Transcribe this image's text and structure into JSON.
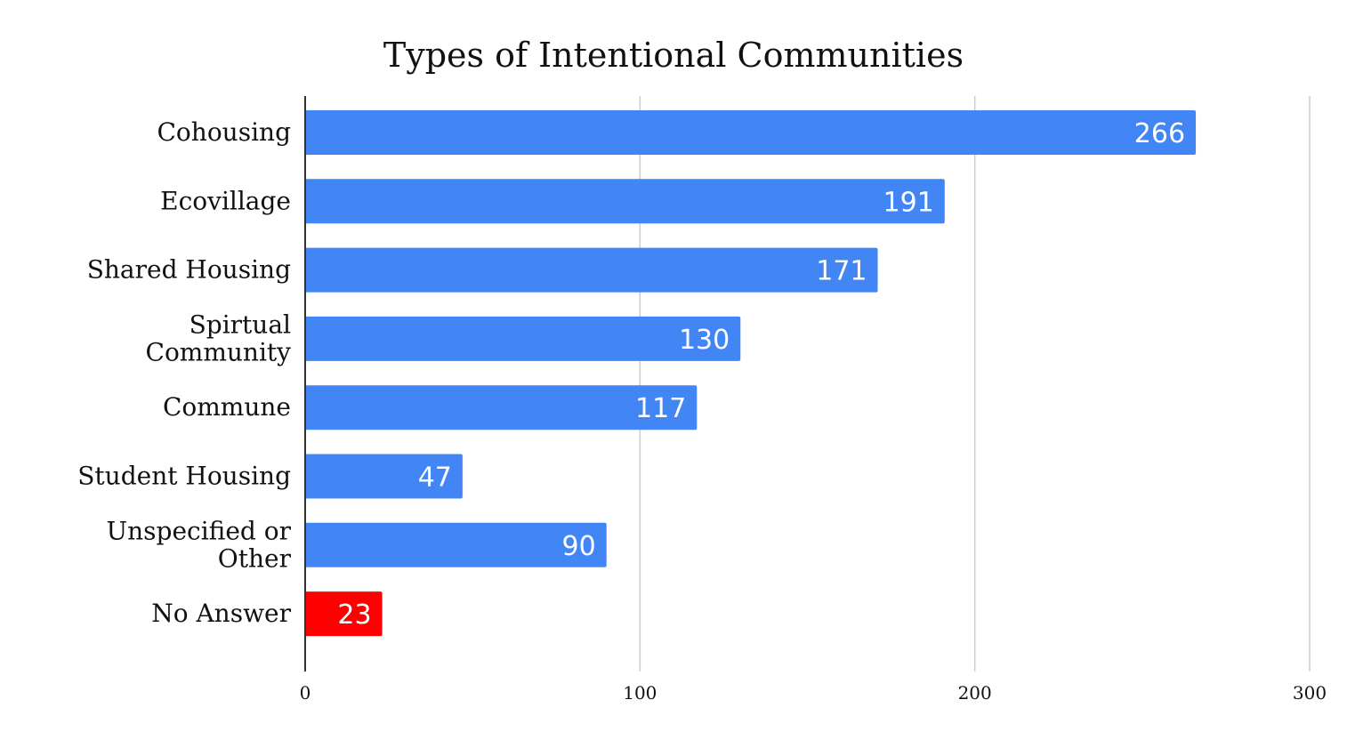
{
  "chart_data": {
    "type": "bar",
    "orientation": "horizontal",
    "title": "Types of Intentional Communities",
    "xlabel": "",
    "ylabel": "",
    "categories": [
      [
        "Cohousing"
      ],
      [
        "Ecovillage"
      ],
      [
        "Shared Housing"
      ],
      [
        "Spirtual",
        "Community"
      ],
      [
        "Commune"
      ],
      [
        "Student Housing"
      ],
      [
        "Unspecified or",
        "Other"
      ],
      [
        "No Answer"
      ]
    ],
    "values": [
      266,
      191,
      171,
      130,
      117,
      47,
      90,
      23
    ],
    "bar_colors": [
      "#4285f4",
      "#4285f4",
      "#4285f4",
      "#4285f4",
      "#4285f4",
      "#4285f4",
      "#4285f4",
      "#ff0000"
    ],
    "data_labels": [
      "266",
      "191",
      "171",
      "130",
      "117",
      "47",
      "90",
      "23"
    ],
    "xlim": [
      0,
      300
    ],
    "xticks": [
      0,
      100,
      200,
      300
    ],
    "xtick_labels": [
      "0",
      "100",
      "200",
      "300"
    ],
    "grid": true,
    "legend": "none",
    "colors": {
      "bar": "#4285f4",
      "highlight": "#ff0000",
      "grid": "#cccccc",
      "axis": "#333333",
      "text": "#111111",
      "bar_label": "#ffffff"
    }
  }
}
